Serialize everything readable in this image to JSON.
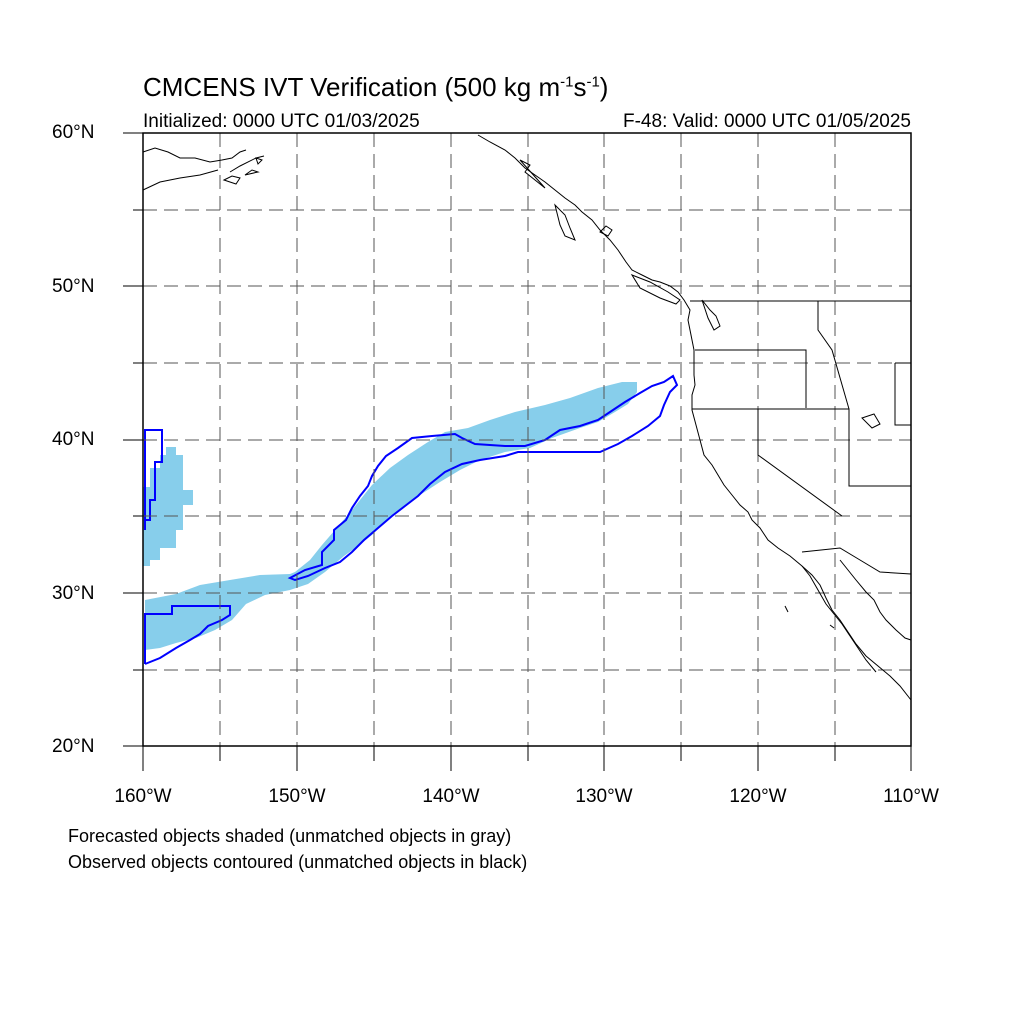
{
  "title": {
    "prefix": "CMCENS IVT Verification (500 kg m",
    "sup1": "-1",
    "mid": "s",
    "sup2": "-1",
    "suffix": ")"
  },
  "initialized": "Initialized: 0000 UTC 01/03/2025",
  "valid": "F-48: Valid: 0000 UTC 01/05/2025",
  "lat_labels": [
    "60°N",
    "50°N",
    "40°N",
    "30°N",
    "20°N"
  ],
  "lon_labels": [
    "160°W",
    "150°W",
    "140°W",
    "130°W",
    "120°W",
    "110°W"
  ],
  "legend_notes": [
    "Forecasted objects shaded (unmatched objects in gray)",
    "Observed objects contoured (unmatched objects in black)"
  ],
  "colors": {
    "forecast_fill": "#87ceeb",
    "observed_contour": "#0000ff",
    "coastline": "#000000",
    "grid": "#555555"
  },
  "map_extent": {
    "lon": [
      -160,
      -110
    ],
    "lat": [
      20,
      60
    ]
  },
  "grid": {
    "lon_step": 5,
    "lat_step": 5,
    "style": "dashed"
  }
}
